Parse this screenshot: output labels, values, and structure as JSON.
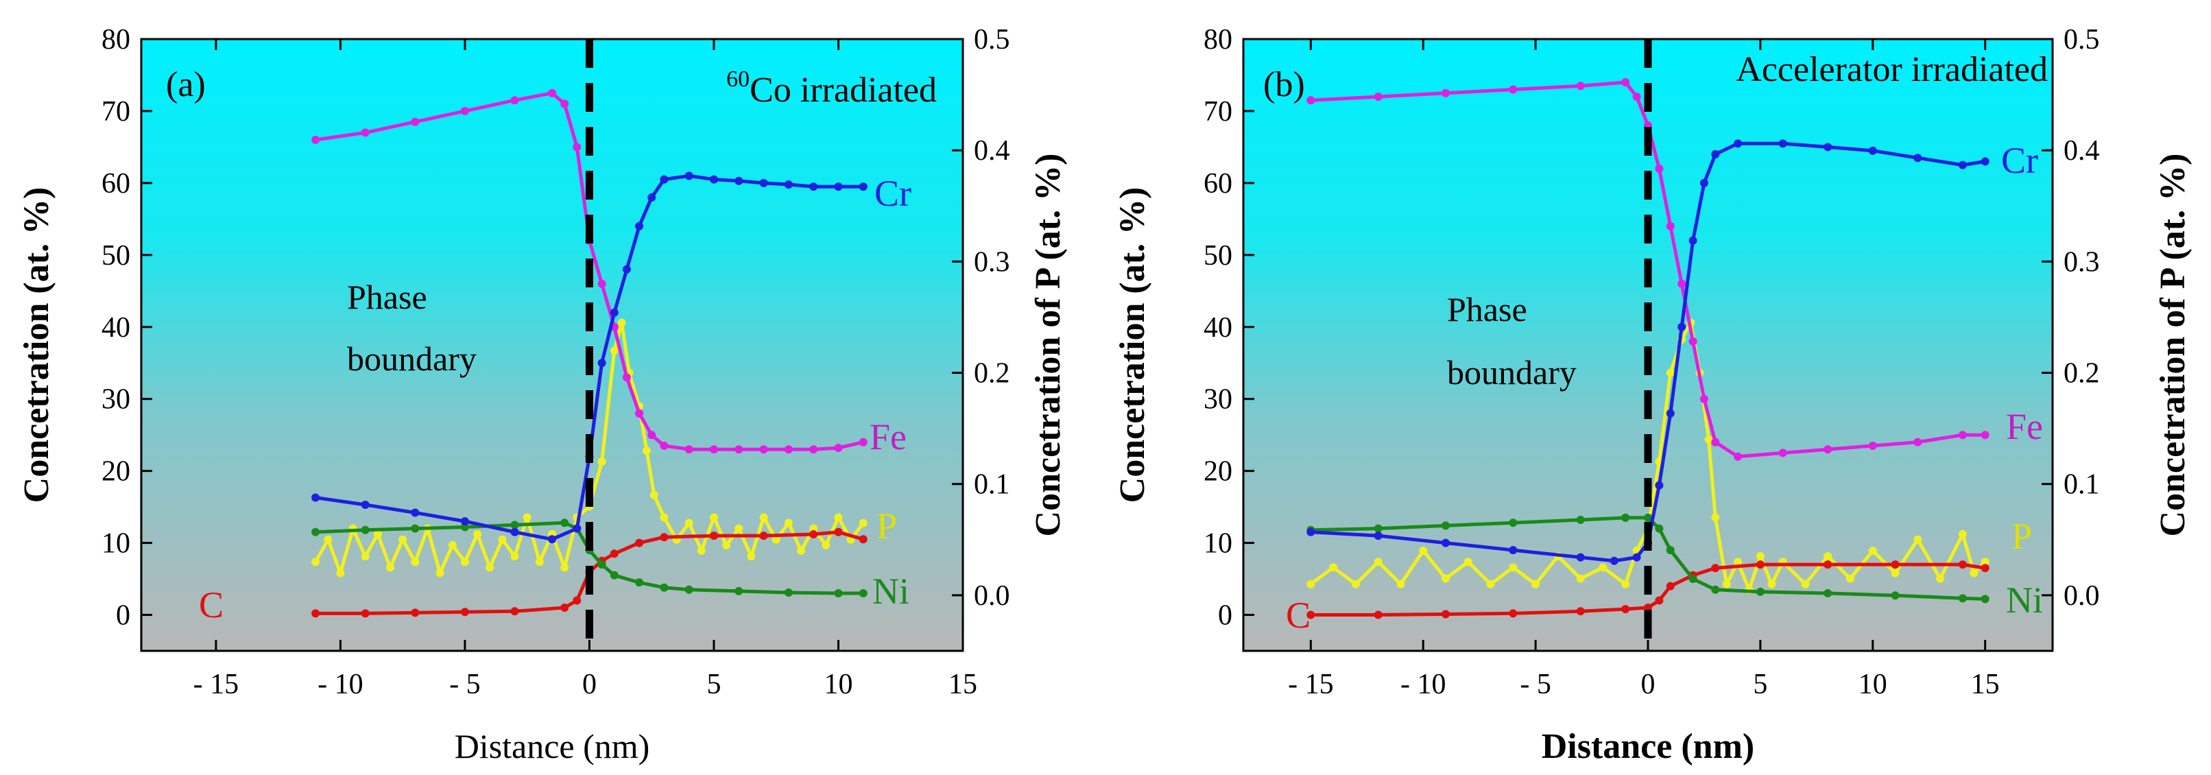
{
  "chart_data": [
    {
      "type": "line",
      "panel_label": "(a)",
      "title_sup": "60",
      "title": "Co irradiated",
      "xlabel": "Distance (nm)",
      "ylabel": "Concetration (at. %)",
      "y2label": "Concetration of P (at. %)",
      "xlim": [
        -18,
        15
      ],
      "ylim": [
        -5,
        80
      ],
      "y2lim": [
        -0.05,
        0.5
      ],
      "xticks": [
        -15,
        -10,
        -5,
        0,
        5,
        10,
        15
      ],
      "xtick_labels": [
        "- 15",
        "- 10",
        "- 5",
        "0",
        "5",
        "10",
        "15"
      ],
      "yticks": [
        0,
        10,
        20,
        30,
        40,
        50,
        60,
        70,
        80
      ],
      "ytick_labels": [
        "0",
        "10",
        "20",
        "30",
        "40",
        "50",
        "60",
        "70",
        "80"
      ],
      "y2ticks": [
        0.0,
        0.1,
        0.2,
        0.3,
        0.4,
        0.5
      ],
      "y2tick_labels": [
        "0.0",
        "0.1",
        "0.2",
        "0.3",
        "0.4",
        "0.5"
      ],
      "boundary_x": 0,
      "annotation": [
        "Phase",
        "boundary"
      ],
      "series": [
        {
          "name": "Cr",
          "color": "#1f1fe0",
          "axis": "left",
          "points": [
            [
              -11,
              16.3
            ],
            [
              -9,
              15.3
            ],
            [
              -7,
              14.2
            ],
            [
              -5,
              13.0
            ],
            [
              -3,
              11.5
            ],
            [
              -1.5,
              10.5
            ],
            [
              -0.5,
              12
            ],
            [
              0,
              22
            ],
            [
              0.5,
              35
            ],
            [
              1,
              42
            ],
            [
              1.5,
              48
            ],
            [
              2,
              54
            ],
            [
              2.5,
              58
            ],
            [
              3,
              60.5
            ],
            [
              4,
              61
            ],
            [
              5,
              60.5
            ],
            [
              6,
              60.3
            ],
            [
              7,
              60
            ],
            [
              8,
              59.8
            ],
            [
              9,
              59.5
            ],
            [
              10,
              59.5
            ],
            [
              11,
              59.5
            ]
          ]
        },
        {
          "name": "Fe",
          "color": "#e020e0",
          "axis": "left",
          "points": [
            [
              -11,
              66
            ],
            [
              -9,
              67
            ],
            [
              -7,
              68.5
            ],
            [
              -5,
              70
            ],
            [
              -3,
              71.5
            ],
            [
              -1.5,
              72.5
            ],
            [
              -1,
              71
            ],
            [
              -0.5,
              65
            ],
            [
              0,
              52
            ],
            [
              0.5,
              46
            ],
            [
              1,
              40
            ],
            [
              1.5,
              33
            ],
            [
              2,
              28
            ],
            [
              2.5,
              25
            ],
            [
              3,
              23.5
            ],
            [
              4,
              23
            ],
            [
              5,
              23
            ],
            [
              6,
              23
            ],
            [
              7,
              23
            ],
            [
              8,
              23
            ],
            [
              9,
              23
            ],
            [
              10,
              23.2
            ],
            [
              11,
              24
            ]
          ]
        },
        {
          "name": "Ni",
          "color": "#1a8a1a",
          "axis": "left",
          "points": [
            [
              -11,
              11.5
            ],
            [
              -9,
              11.8
            ],
            [
              -7,
              12
            ],
            [
              -5,
              12.2
            ],
            [
              -3,
              12.5
            ],
            [
              -1,
              12.8
            ],
            [
              -0.5,
              12
            ],
            [
              0,
              9
            ],
            [
              0.5,
              7
            ],
            [
              1,
              5.5
            ],
            [
              2,
              4.5
            ],
            [
              3,
              3.8
            ],
            [
              4,
              3.5
            ],
            [
              6,
              3.3
            ],
            [
              8,
              3.1
            ],
            [
              10,
              3
            ],
            [
              11,
              3
            ]
          ]
        },
        {
          "name": "C",
          "color": "#e01010",
          "axis": "left",
          "points": [
            [
              -11,
              0.2
            ],
            [
              -9,
              0.2
            ],
            [
              -7,
              0.3
            ],
            [
              -5,
              0.4
            ],
            [
              -3,
              0.5
            ],
            [
              -1,
              1
            ],
            [
              -0.5,
              2
            ],
            [
              0,
              6
            ],
            [
              0.5,
              7.5
            ],
            [
              1,
              8.5
            ],
            [
              2,
              10
            ],
            [
              3,
              10.8
            ],
            [
              5,
              11
            ],
            [
              7,
              11
            ],
            [
              9,
              11.2
            ],
            [
              10,
              11.5
            ],
            [
              11,
              10.5
            ]
          ]
        },
        {
          "name": "P",
          "color": "#f0f020",
          "axis": "right",
          "points": [
            [
              -11,
              0.03
            ],
            [
              -10.5,
              0.05
            ],
            [
              -10,
              0.02
            ],
            [
              -9.5,
              0.06
            ],
            [
              -9,
              0.035
            ],
            [
              -8.5,
              0.055
            ],
            [
              -8,
              0.025
            ],
            [
              -7.5,
              0.05
            ],
            [
              -7,
              0.03
            ],
            [
              -6.5,
              0.06
            ],
            [
              -6,
              0.02
            ],
            [
              -5.5,
              0.045
            ],
            [
              -5,
              0.03
            ],
            [
              -4.5,
              0.055
            ],
            [
              -4,
              0.025
            ],
            [
              -3.5,
              0.05
            ],
            [
              -3,
              0.035
            ],
            [
              -2.5,
              0.07
            ],
            [
              -2,
              0.03
            ],
            [
              -1.5,
              0.055
            ],
            [
              -1,
              0.025
            ],
            [
              -0.5,
              0.07
            ],
            [
              0,
              0.08
            ],
            [
              0.5,
              0.12
            ],
            [
              1,
              0.22
            ],
            [
              1.3,
              0.245
            ],
            [
              1.6,
              0.2
            ],
            [
              2,
              0.17
            ],
            [
              2.3,
              0.13
            ],
            [
              2.6,
              0.09
            ],
            [
              3,
              0.07
            ],
            [
              3.5,
              0.05
            ],
            [
              4,
              0.065
            ],
            [
              4.5,
              0.04
            ],
            [
              5,
              0.07
            ],
            [
              5.5,
              0.045
            ],
            [
              6,
              0.06
            ],
            [
              6.5,
              0.035
            ],
            [
              7,
              0.07
            ],
            [
              7.5,
              0.05
            ],
            [
              8,
              0.065
            ],
            [
              8.5,
              0.04
            ],
            [
              9,
              0.06
            ],
            [
              9.5,
              0.045
            ],
            [
              10,
              0.07
            ],
            [
              10.5,
              0.05
            ],
            [
              11,
              0.065
            ]
          ]
        }
      ]
    },
    {
      "type": "line",
      "panel_label": "(b)",
      "title": "Accelerator irradiated",
      "xlabel": "Distance (nm)",
      "ylabel": "Concetration (at. %)",
      "y2label": "Concetration of P (at. %)",
      "xlim": [
        -18,
        18
      ],
      "ylim": [
        -5,
        80
      ],
      "y2lim": [
        -0.05,
        0.5
      ],
      "xticks": [
        -15,
        -10,
        -5,
        0,
        5,
        10,
        15
      ],
      "xtick_labels": [
        "- 15",
        "- 10",
        "- 5",
        "0",
        "5",
        "10",
        "15"
      ],
      "yticks": [
        0,
        10,
        20,
        30,
        40,
        50,
        60,
        70,
        80
      ],
      "ytick_labels": [
        "0",
        "10",
        "20",
        "30",
        "40",
        "50",
        "60",
        "70",
        "80"
      ],
      "y2ticks": [
        0.0,
        0.1,
        0.2,
        0.3,
        0.4,
        0.5
      ],
      "y2tick_labels": [
        "0.0",
        "0.1",
        "0.2",
        "0.3",
        "0.4",
        "0.5"
      ],
      "boundary_x": 0,
      "annotation": [
        "Phase",
        "boundary"
      ],
      "series": [
        {
          "name": "Cr",
          "color": "#1f1fe0",
          "axis": "left",
          "points": [
            [
              -15,
              11.5
            ],
            [
              -12,
              11
            ],
            [
              -9,
              10
            ],
            [
              -6,
              9
            ],
            [
              -3,
              8
            ],
            [
              -1.5,
              7.5
            ],
            [
              -0.5,
              8
            ],
            [
              0,
              10
            ],
            [
              0.5,
              18
            ],
            [
              1,
              28
            ],
            [
              1.5,
              40
            ],
            [
              2,
              52
            ],
            [
              2.5,
              60
            ],
            [
              3,
              64
            ],
            [
              4,
              65.5
            ],
            [
              6,
              65.5
            ],
            [
              8,
              65
            ],
            [
              10,
              64.5
            ],
            [
              12,
              63.5
            ],
            [
              14,
              62.5
            ],
            [
              15,
              63
            ]
          ]
        },
        {
          "name": "Fe",
          "color": "#e020e0",
          "axis": "left",
          "points": [
            [
              -15,
              71.5
            ],
            [
              -12,
              72
            ],
            [
              -9,
              72.5
            ],
            [
              -6,
              73
            ],
            [
              -3,
              73.5
            ],
            [
              -1,
              74
            ],
            [
              -0.5,
              72
            ],
            [
              0,
              68
            ],
            [
              0.5,
              62
            ],
            [
              1,
              54
            ],
            [
              1.5,
              46
            ],
            [
              2,
              38
            ],
            [
              2.5,
              30
            ],
            [
              3,
              24
            ],
            [
              4,
              22
            ],
            [
              6,
              22.5
            ],
            [
              8,
              23
            ],
            [
              10,
              23.5
            ],
            [
              12,
              24
            ],
            [
              14,
              25
            ],
            [
              15,
              25
            ]
          ]
        },
        {
          "name": "Ni",
          "color": "#1a8a1a",
          "axis": "left",
          "points": [
            [
              -15,
              11.8
            ],
            [
              -12,
              12
            ],
            [
              -9,
              12.4
            ],
            [
              -6,
              12.8
            ],
            [
              -3,
              13.2
            ],
            [
              -1,
              13.5
            ],
            [
              0,
              13.5
            ],
            [
              0.5,
              12
            ],
            [
              1,
              9
            ],
            [
              2,
              5
            ],
            [
              3,
              3.5
            ],
            [
              5,
              3.2
            ],
            [
              8,
              3
            ],
            [
              11,
              2.7
            ],
            [
              14,
              2.3
            ],
            [
              15,
              2.2
            ]
          ]
        },
        {
          "name": "C",
          "color": "#e01010",
          "axis": "left",
          "points": [
            [
              -15,
              0
            ],
            [
              -12,
              0
            ],
            [
              -9,
              0.1
            ],
            [
              -6,
              0.2
            ],
            [
              -3,
              0.5
            ],
            [
              -1,
              0.8
            ],
            [
              0,
              1
            ],
            [
              0.5,
              2
            ],
            [
              1,
              4
            ],
            [
              2,
              5.5
            ],
            [
              3,
              6.5
            ],
            [
              5,
              7
            ],
            [
              8,
              7
            ],
            [
              11,
              7
            ],
            [
              14,
              7
            ],
            [
              15,
              6.5
            ]
          ]
        },
        {
          "name": "P",
          "color": "#f0f020",
          "axis": "right",
          "points": [
            [
              -15,
              0.01
            ],
            [
              -14,
              0.025
            ],
            [
              -13,
              0.01
            ],
            [
              -12,
              0.03
            ],
            [
              -11,
              0.01
            ],
            [
              -10,
              0.04
            ],
            [
              -9,
              0.015
            ],
            [
              -8,
              0.03
            ],
            [
              -7,
              0.01
            ],
            [
              -6,
              0.025
            ],
            [
              -5,
              0.01
            ],
            [
              -4,
              0.035
            ],
            [
              -3,
              0.015
            ],
            [
              -2,
              0.025
            ],
            [
              -1,
              0.01
            ],
            [
              -0.5,
              0.04
            ],
            [
              0,
              0.06
            ],
            [
              0.5,
              0.12
            ],
            [
              1,
              0.2
            ],
            [
              1.5,
              0.23
            ],
            [
              1.9,
              0.245
            ],
            [
              2.3,
              0.2
            ],
            [
              2.7,
              0.14
            ],
            [
              3,
              0.07
            ],
            [
              3.5,
              0.01
            ],
            [
              4,
              0.03
            ],
            [
              4.5,
              0.005
            ],
            [
              5,
              0.035
            ],
            [
              5.5,
              0.01
            ],
            [
              6,
              0.03
            ],
            [
              7,
              0.01
            ],
            [
              8,
              0.035
            ],
            [
              9,
              0.015
            ],
            [
              10,
              0.04
            ],
            [
              11,
              0.02
            ],
            [
              12,
              0.05
            ],
            [
              13,
              0.015
            ],
            [
              14,
              0.055
            ],
            [
              14.5,
              0.02
            ],
            [
              15,
              0.03
            ]
          ]
        }
      ]
    }
  ]
}
